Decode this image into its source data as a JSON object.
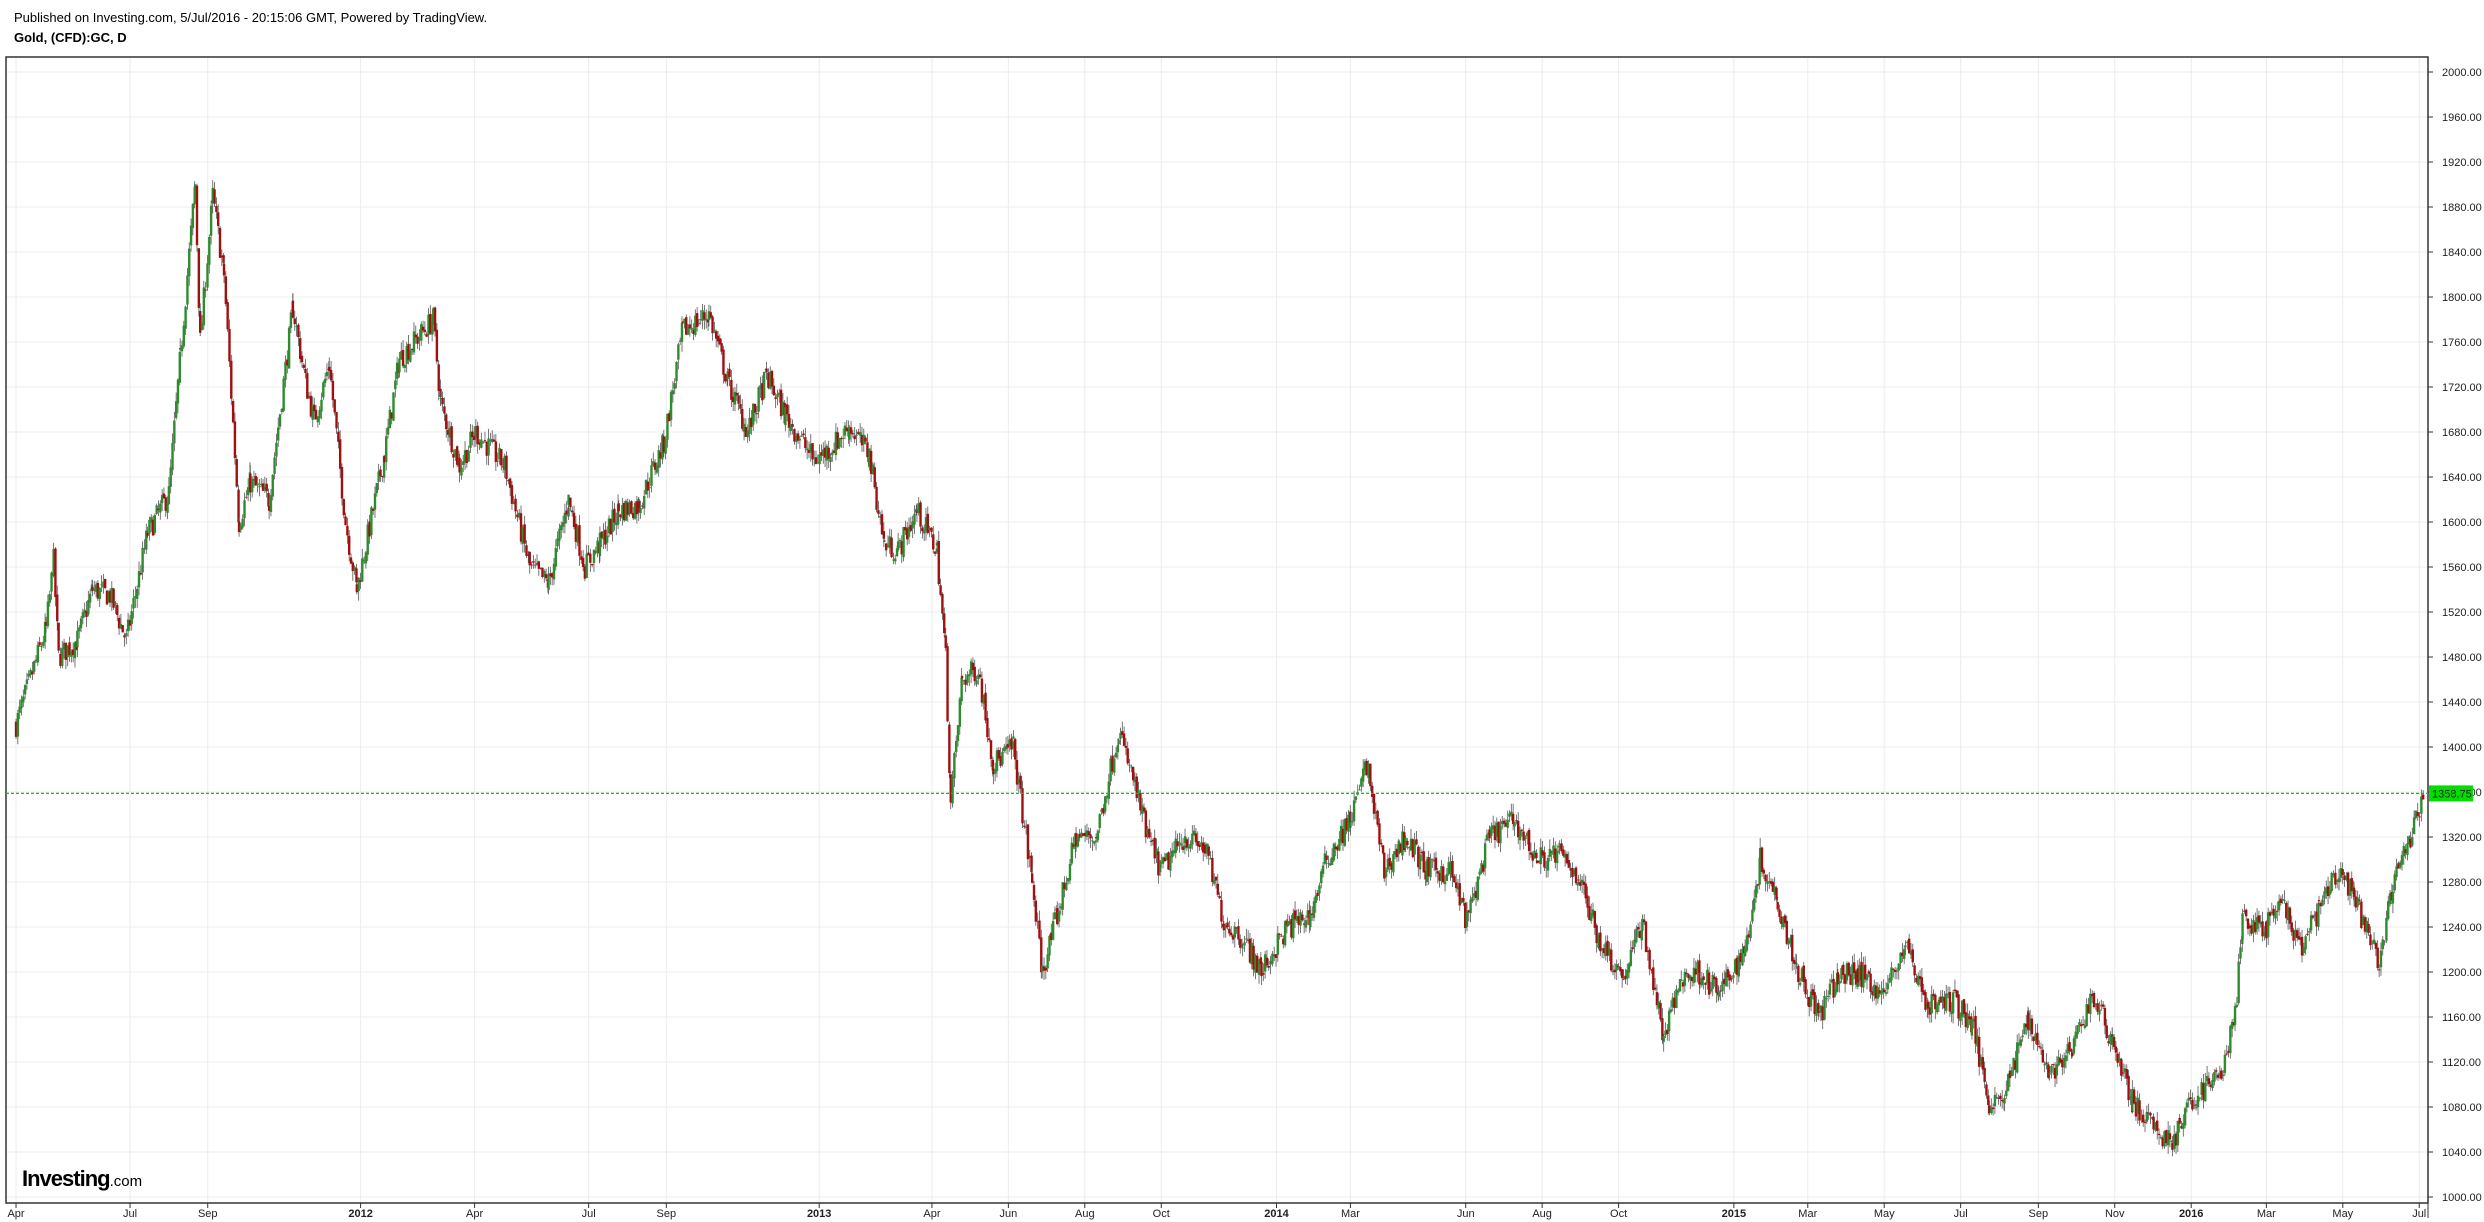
{
  "header": {
    "published": "Published on Investing.com, 5/Jul/2016 - 20:15:06 GMT, Powered by TradingView.",
    "symbol": "Gold, (CFD):GC, D"
  },
  "logo": {
    "brand": "Investing",
    "suffix": ".com"
  },
  "price_tag": {
    "value": "1358.75",
    "color": "#00dd00"
  },
  "colors": {
    "up": "#2e8b2e",
    "down": "#a01010",
    "grid": "#ececec",
    "axis": "#333333"
  },
  "chart_data": {
    "type": "candlestick",
    "title": "Gold, (CFD):GC, D",
    "ylim": [
      1000,
      2000
    ],
    "y_ticks": [
      "1000.00",
      "1040.00",
      "1080.00",
      "1120.00",
      "1160.00",
      "1200.00",
      "1240.00",
      "1280.00",
      "1320.00",
      "1360.00",
      "1400.00",
      "1440.00",
      "1480.00",
      "1520.00",
      "1560.00",
      "1600.00",
      "1640.00",
      "1680.00",
      "1720.00",
      "1760.00",
      "1800.00",
      "1840.00",
      "1880.00",
      "1920.00",
      "1960.00",
      "2000.00"
    ],
    "x_ticks": [
      {
        "label": "Apr",
        "date": "2011-04-01",
        "year": false
      },
      {
        "label": "Jul",
        "date": "2011-07-01",
        "year": false
      },
      {
        "label": "Sep",
        "date": "2011-09-01",
        "year": false
      },
      {
        "label": "2012",
        "date": "2012-01-01",
        "year": true
      },
      {
        "label": "Apr",
        "date": "2012-04-01",
        "year": false
      },
      {
        "label": "Jul",
        "date": "2012-07-01",
        "year": false
      },
      {
        "label": "Sep",
        "date": "2012-09-01",
        "year": false
      },
      {
        "label": "2013",
        "date": "2013-01-01",
        "year": true
      },
      {
        "label": "Apr",
        "date": "2013-04-01",
        "year": false
      },
      {
        "label": "Jun",
        "date": "2013-06-01",
        "year": false
      },
      {
        "label": "Aug",
        "date": "2013-08-01",
        "year": false
      },
      {
        "label": "Oct",
        "date": "2013-10-01",
        "year": false
      },
      {
        "label": "2014",
        "date": "2014-01-01",
        "year": true
      },
      {
        "label": "Mar",
        "date": "2014-03-01",
        "year": false
      },
      {
        "label": "Jun",
        "date": "2014-06-01",
        "year": false
      },
      {
        "label": "Aug",
        "date": "2014-08-01",
        "year": false
      },
      {
        "label": "Oct",
        "date": "2014-10-01",
        "year": false
      },
      {
        "label": "2015",
        "date": "2015-01-01",
        "year": true
      },
      {
        "label": "Mar",
        "date": "2015-03-01",
        "year": false
      },
      {
        "label": "May",
        "date": "2015-05-01",
        "year": false
      },
      {
        "label": "Jul",
        "date": "2015-07-01",
        "year": false
      },
      {
        "label": "Sep",
        "date": "2015-09-01",
        "year": false
      },
      {
        "label": "Nov",
        "date": "2015-11-01",
        "year": false
      },
      {
        "label": "2016",
        "date": "2016-01-01",
        "year": true
      },
      {
        "label": "Mar",
        "date": "2016-03-01",
        "year": false
      },
      {
        "label": "May",
        "date": "2016-05-01",
        "year": false
      },
      {
        "label": "Jul",
        "date": "2016-07-01",
        "year": false
      }
    ],
    "last_price": 1358.75,
    "series": [
      {
        "date": "2011-04-01",
        "close": 1420
      },
      {
        "date": "2011-04-25",
        "close": 1505
      },
      {
        "date": "2011-05-01",
        "close": 1565
      },
      {
        "date": "2011-05-05",
        "close": 1480
      },
      {
        "date": "2011-05-20",
        "close": 1495
      },
      {
        "date": "2011-06-01",
        "close": 1540
      },
      {
        "date": "2011-06-15",
        "close": 1535
      },
      {
        "date": "2011-06-28",
        "close": 1495
      },
      {
        "date": "2011-07-15",
        "close": 1590
      },
      {
        "date": "2011-08-01",
        "close": 1625
      },
      {
        "date": "2011-08-10",
        "close": 1745
      },
      {
        "date": "2011-08-22",
        "close": 1900
      },
      {
        "date": "2011-08-26",
        "close": 1760
      },
      {
        "date": "2011-09-05",
        "close": 1890
      },
      {
        "date": "2011-09-14",
        "close": 1820
      },
      {
        "date": "2011-09-26",
        "close": 1600
      },
      {
        "date": "2011-10-05",
        "close": 1635
      },
      {
        "date": "2011-10-20",
        "close": 1620
      },
      {
        "date": "2011-11-08",
        "close": 1790
      },
      {
        "date": "2011-11-18",
        "close": 1725
      },
      {
        "date": "2011-11-25",
        "close": 1690
      },
      {
        "date": "2011-12-07",
        "close": 1740
      },
      {
        "date": "2011-12-20",
        "close": 1600
      },
      {
        "date": "2011-12-29",
        "close": 1540
      },
      {
        "date": "2012-01-20",
        "close": 1660
      },
      {
        "date": "2012-02-01",
        "close": 1745
      },
      {
        "date": "2012-02-28",
        "close": 1780
      },
      {
        "date": "2012-03-05",
        "close": 1705
      },
      {
        "date": "2012-03-20",
        "close": 1650
      },
      {
        "date": "2012-04-02",
        "close": 1680
      },
      {
        "date": "2012-04-25",
        "close": 1650
      },
      {
        "date": "2012-05-15",
        "close": 1560
      },
      {
        "date": "2012-05-30",
        "close": 1545
      },
      {
        "date": "2012-06-15",
        "close": 1620
      },
      {
        "date": "2012-06-28",
        "close": 1560
      },
      {
        "date": "2012-07-10",
        "close": 1580
      },
      {
        "date": "2012-07-25",
        "close": 1610
      },
      {
        "date": "2012-08-10",
        "close": 1615
      },
      {
        "date": "2012-08-30",
        "close": 1670
      },
      {
        "date": "2012-09-14",
        "close": 1770
      },
      {
        "date": "2012-10-05",
        "close": 1785
      },
      {
        "date": "2012-10-20",
        "close": 1725
      },
      {
        "date": "2012-11-05",
        "close": 1680
      },
      {
        "date": "2012-11-20",
        "close": 1730
      },
      {
        "date": "2012-12-05",
        "close": 1695
      },
      {
        "date": "2012-12-28",
        "close": 1655
      },
      {
        "date": "2013-01-10",
        "close": 1665
      },
      {
        "date": "2013-01-25",
        "close": 1685
      },
      {
        "date": "2013-02-10",
        "close": 1660
      },
      {
        "date": "2013-02-22",
        "close": 1580
      },
      {
        "date": "2013-03-05",
        "close": 1575
      },
      {
        "date": "2013-03-20",
        "close": 1610
      },
      {
        "date": "2013-04-05",
        "close": 1575
      },
      {
        "date": "2013-04-12",
        "close": 1480
      },
      {
        "date": "2013-04-16",
        "close": 1350
      },
      {
        "date": "2013-04-25",
        "close": 1460
      },
      {
        "date": "2013-05-08",
        "close": 1470
      },
      {
        "date": "2013-05-20",
        "close": 1385
      },
      {
        "date": "2013-06-05",
        "close": 1400
      },
      {
        "date": "2013-06-20",
        "close": 1280
      },
      {
        "date": "2013-06-28",
        "close": 1200
      },
      {
        "date": "2013-07-10",
        "close": 1250
      },
      {
        "date": "2013-07-25",
        "close": 1320
      },
      {
        "date": "2013-08-10",
        "close": 1320
      },
      {
        "date": "2013-08-28",
        "close": 1415
      },
      {
        "date": "2013-09-10",
        "close": 1365
      },
      {
        "date": "2013-09-20",
        "close": 1320
      },
      {
        "date": "2013-10-01",
        "close": 1290
      },
      {
        "date": "2013-10-20",
        "close": 1320
      },
      {
        "date": "2013-11-05",
        "close": 1310
      },
      {
        "date": "2013-11-20",
        "close": 1245
      },
      {
        "date": "2013-12-05",
        "close": 1230
      },
      {
        "date": "2013-12-20",
        "close": 1200
      },
      {
        "date": "2014-01-10",
        "close": 1240
      },
      {
        "date": "2014-01-28",
        "close": 1250
      },
      {
        "date": "2014-02-10",
        "close": 1300
      },
      {
        "date": "2014-03-01",
        "close": 1335
      },
      {
        "date": "2014-03-14",
        "close": 1385
      },
      {
        "date": "2014-03-28",
        "close": 1290
      },
      {
        "date": "2014-04-14",
        "close": 1320
      },
      {
        "date": "2014-05-01",
        "close": 1290
      },
      {
        "date": "2014-05-20",
        "close": 1290
      },
      {
        "date": "2014-06-02",
        "close": 1245
      },
      {
        "date": "2014-06-20",
        "close": 1320
      },
      {
        "date": "2014-07-10",
        "close": 1335
      },
      {
        "date": "2014-07-28",
        "close": 1300
      },
      {
        "date": "2014-08-15",
        "close": 1305
      },
      {
        "date": "2014-08-30",
        "close": 1285
      },
      {
        "date": "2014-09-15",
        "close": 1230
      },
      {
        "date": "2014-10-05",
        "close": 1195
      },
      {
        "date": "2014-10-20",
        "close": 1245
      },
      {
        "date": "2014-11-06",
        "close": 1140
      },
      {
        "date": "2014-11-20",
        "close": 1195
      },
      {
        "date": "2014-12-05",
        "close": 1200
      },
      {
        "date": "2014-12-20",
        "close": 1180
      },
      {
        "date": "2015-01-10",
        "close": 1220
      },
      {
        "date": "2015-01-22",
        "close": 1300
      },
      {
        "date": "2015-02-05",
        "close": 1265
      },
      {
        "date": "2015-02-20",
        "close": 1205
      },
      {
        "date": "2015-03-10",
        "close": 1160
      },
      {
        "date": "2015-03-25",
        "close": 1195
      },
      {
        "date": "2015-04-10",
        "close": 1200
      },
      {
        "date": "2015-05-01",
        "close": 1180
      },
      {
        "date": "2015-05-18",
        "close": 1225
      },
      {
        "date": "2015-06-05",
        "close": 1170
      },
      {
        "date": "2015-06-25",
        "close": 1175
      },
      {
        "date": "2015-07-10",
        "close": 1155
      },
      {
        "date": "2015-07-24",
        "close": 1085
      },
      {
        "date": "2015-08-05",
        "close": 1090
      },
      {
        "date": "2015-08-24",
        "close": 1160
      },
      {
        "date": "2015-09-10",
        "close": 1110
      },
      {
        "date": "2015-09-28",
        "close": 1130
      },
      {
        "date": "2015-10-14",
        "close": 1180
      },
      {
        "date": "2015-10-30",
        "close": 1140
      },
      {
        "date": "2015-11-15",
        "close": 1085
      },
      {
        "date": "2015-12-02",
        "close": 1060
      },
      {
        "date": "2015-12-17",
        "close": 1050
      },
      {
        "date": "2016-01-05",
        "close": 1090
      },
      {
        "date": "2016-01-25",
        "close": 1110
      },
      {
        "date": "2016-02-05",
        "close": 1160
      },
      {
        "date": "2016-02-11",
        "close": 1245
      },
      {
        "date": "2016-03-01",
        "close": 1240
      },
      {
        "date": "2016-03-14",
        "close": 1260
      },
      {
        "date": "2016-03-28",
        "close": 1220
      },
      {
        "date": "2016-04-12",
        "close": 1255
      },
      {
        "date": "2016-04-28",
        "close": 1290
      },
      {
        "date": "2016-05-10",
        "close": 1265
      },
      {
        "date": "2016-05-30",
        "close": 1210
      },
      {
        "date": "2016-06-10",
        "close": 1275
      },
      {
        "date": "2016-06-24",
        "close": 1320
      },
      {
        "date": "2016-07-05",
        "close": 1358.75
      }
    ]
  }
}
